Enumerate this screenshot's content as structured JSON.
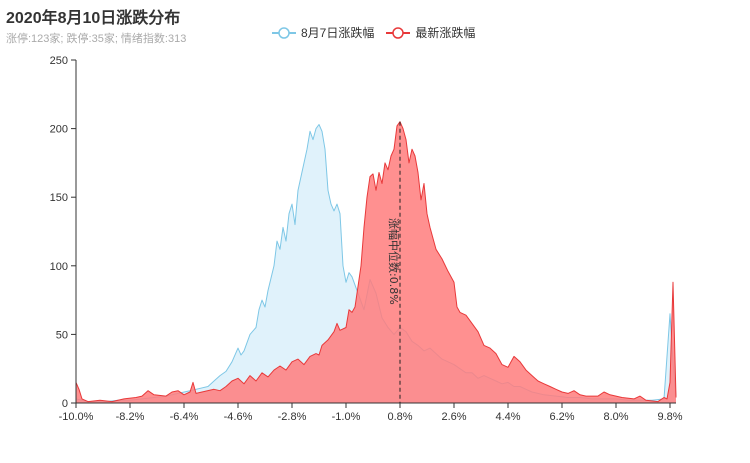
{
  "header": {
    "title": "2020年8月10日涨跌分布",
    "subtitle": "涨停:123家; 跌停:35家; 情绪指数:313"
  },
  "legend": {
    "items": [
      {
        "label": "8月7日涨跌幅",
        "color": "#7ec7e6",
        "fill": "#ddf1fb"
      },
      {
        "label": "最新涨跌幅",
        "color": "#e8393a",
        "fill": "#ff7c7c"
      }
    ]
  },
  "chart_data": {
    "type": "area",
    "title": "2020年8月10日涨跌分布",
    "subtitle": "涨停:123家; 跌停:35家; 情绪指数:313",
    "xlim": [
      -10.0,
      10.0
    ],
    "ylim": [
      0,
      250
    ],
    "x_ticks": [
      "-10.0%",
      "-8.2%",
      "-6.4%",
      "-4.6%",
      "-2.8%",
      "-1.0%",
      "0.8%",
      "2.6%",
      "4.4%",
      "6.2%",
      "8.0%",
      "9.8%"
    ],
    "x_tick_values": [
      -10.0,
      -8.2,
      -6.4,
      -4.6,
      -2.8,
      -1.0,
      0.8,
      2.6,
      4.4,
      6.2,
      8.0,
      9.8
    ],
    "y_ticks": [
      0,
      50,
      100,
      150,
      200,
      250
    ],
    "legend_position": "top-center",
    "grid": false,
    "median": {
      "x": 0.8,
      "label": "涨幅中位数:0.8%"
    },
    "series": [
      {
        "name": "8月7日涨跌幅",
        "color": "#7ec7e6",
        "fill": "#ddf1fb",
        "points": [
          [
            -10.0,
            3
          ],
          [
            -9.6,
            1
          ],
          [
            -9.0,
            1
          ],
          [
            -8.6,
            2
          ],
          [
            -8.2,
            2
          ],
          [
            -7.8,
            3
          ],
          [
            -7.4,
            4
          ],
          [
            -7.0,
            5
          ],
          [
            -6.6,
            7
          ],
          [
            -6.2,
            9
          ],
          [
            -6.0,
            10
          ],
          [
            -5.6,
            12
          ],
          [
            -5.4,
            16
          ],
          [
            -5.2,
            20
          ],
          [
            -5.0,
            23
          ],
          [
            -4.8,
            30
          ],
          [
            -4.6,
            40
          ],
          [
            -4.5,
            35
          ],
          [
            -4.4,
            38
          ],
          [
            -4.2,
            50
          ],
          [
            -4.0,
            55
          ],
          [
            -3.9,
            68
          ],
          [
            -3.8,
            75
          ],
          [
            -3.7,
            70
          ],
          [
            -3.6,
            82
          ],
          [
            -3.4,
            100
          ],
          [
            -3.3,
            118
          ],
          [
            -3.2,
            112
          ],
          [
            -3.1,
            128
          ],
          [
            -3.0,
            118
          ],
          [
            -2.9,
            138
          ],
          [
            -2.8,
            145
          ],
          [
            -2.7,
            130
          ],
          [
            -2.6,
            155
          ],
          [
            -2.5,
            165
          ],
          [
            -2.4,
            175
          ],
          [
            -2.3,
            185
          ],
          [
            -2.2,
            198
          ],
          [
            -2.1,
            192
          ],
          [
            -2.0,
            200
          ],
          [
            -1.9,
            203
          ],
          [
            -1.8,
            198
          ],
          [
            -1.7,
            185
          ],
          [
            -1.6,
            155
          ],
          [
            -1.5,
            145
          ],
          [
            -1.4,
            140
          ],
          [
            -1.3,
            145
          ],
          [
            -1.2,
            138
          ],
          [
            -1.1,
            100
          ],
          [
            -1.0,
            88
          ],
          [
            -0.9,
            95
          ],
          [
            -0.8,
            92
          ],
          [
            -0.6,
            80
          ],
          [
            -0.4,
            68
          ],
          [
            -0.2,
            90
          ],
          [
            0.0,
            80
          ],
          [
            0.2,
            62
          ],
          [
            0.4,
            55
          ],
          [
            0.6,
            50
          ],
          [
            0.8,
            55
          ],
          [
            1.0,
            52
          ],
          [
            1.2,
            45
          ],
          [
            1.4,
            42
          ],
          [
            1.6,
            38
          ],
          [
            1.8,
            40
          ],
          [
            2.0,
            36
          ],
          [
            2.2,
            32
          ],
          [
            2.4,
            30
          ],
          [
            2.6,
            28
          ],
          [
            2.8,
            25
          ],
          [
            3.0,
            22
          ],
          [
            3.2,
            22
          ],
          [
            3.4,
            18
          ],
          [
            3.6,
            20
          ],
          [
            3.8,
            18
          ],
          [
            4.0,
            16
          ],
          [
            4.2,
            14
          ],
          [
            4.4,
            15
          ],
          [
            4.6,
            12
          ],
          [
            4.8,
            12
          ],
          [
            5.0,
            10
          ],
          [
            5.2,
            8
          ],
          [
            5.6,
            6
          ],
          [
            6.0,
            5
          ],
          [
            6.4,
            4
          ],
          [
            6.8,
            4
          ],
          [
            7.2,
            3
          ],
          [
            7.6,
            3
          ],
          [
            8.0,
            3
          ],
          [
            8.4,
            2
          ],
          [
            8.8,
            2
          ],
          [
            9.2,
            2
          ],
          [
            9.6,
            3
          ],
          [
            9.8,
            65
          ],
          [
            9.9,
            30
          ],
          [
            10.0,
            5
          ]
        ]
      },
      {
        "name": "最新涨跌幅",
        "color": "#e8393a",
        "fill": "#ff7c7c",
        "points": [
          [
            -10.0,
            15
          ],
          [
            -9.9,
            10
          ],
          [
            -9.8,
            3
          ],
          [
            -9.6,
            1
          ],
          [
            -9.2,
            2
          ],
          [
            -8.8,
            1
          ],
          [
            -8.4,
            3
          ],
          [
            -8.0,
            4
          ],
          [
            -7.8,
            5
          ],
          [
            -7.6,
            9
          ],
          [
            -7.4,
            6
          ],
          [
            -7.0,
            5
          ],
          [
            -6.8,
            8
          ],
          [
            -6.6,
            9
          ],
          [
            -6.4,
            6
          ],
          [
            -6.2,
            8
          ],
          [
            -6.1,
            15
          ],
          [
            -6.0,
            7
          ],
          [
            -5.8,
            8
          ],
          [
            -5.4,
            10
          ],
          [
            -5.2,
            9
          ],
          [
            -5.0,
            12
          ],
          [
            -4.8,
            16
          ],
          [
            -4.6,
            18
          ],
          [
            -4.4,
            14
          ],
          [
            -4.2,
            20
          ],
          [
            -4.0,
            16
          ],
          [
            -3.8,
            22
          ],
          [
            -3.6,
            19
          ],
          [
            -3.4,
            24
          ],
          [
            -3.2,
            27
          ],
          [
            -3.0,
            24
          ],
          [
            -2.8,
            30
          ],
          [
            -2.6,
            32
          ],
          [
            -2.4,
            28
          ],
          [
            -2.2,
            34
          ],
          [
            -2.0,
            36
          ],
          [
            -1.9,
            35
          ],
          [
            -1.8,
            42
          ],
          [
            -1.6,
            46
          ],
          [
            -1.4,
            52
          ],
          [
            -1.3,
            58
          ],
          [
            -1.2,
            53
          ],
          [
            -1.0,
            55
          ],
          [
            -0.9,
            68
          ],
          [
            -0.8,
            66
          ],
          [
            -0.7,
            70
          ],
          [
            -0.6,
            85
          ],
          [
            -0.5,
            100
          ],
          [
            -0.4,
            128
          ],
          [
            -0.3,
            150
          ],
          [
            -0.2,
            165
          ],
          [
            -0.1,
            167
          ],
          [
            0.0,
            155
          ],
          [
            0.1,
            168
          ],
          [
            0.2,
            160
          ],
          [
            0.3,
            175
          ],
          [
            0.4,
            170
          ],
          [
            0.5,
            180
          ],
          [
            0.6,
            185
          ],
          [
            0.7,
            202
          ],
          [
            0.8,
            205
          ],
          [
            0.9,
            200
          ],
          [
            1.0,
            192
          ],
          [
            1.1,
            175
          ],
          [
            1.2,
            185
          ],
          [
            1.3,
            180
          ],
          [
            1.4,
            168
          ],
          [
            1.5,
            148
          ],
          [
            1.6,
            160
          ],
          [
            1.7,
            138
          ],
          [
            1.8,
            128
          ],
          [
            1.9,
            120
          ],
          [
            2.0,
            112
          ],
          [
            2.2,
            105
          ],
          [
            2.4,
            96
          ],
          [
            2.6,
            88
          ],
          [
            2.7,
            70
          ],
          [
            2.8,
            66
          ],
          [
            3.0,
            64
          ],
          [
            3.2,
            58
          ],
          [
            3.4,
            52
          ],
          [
            3.6,
            42
          ],
          [
            3.8,
            40
          ],
          [
            4.0,
            36
          ],
          [
            4.2,
            28
          ],
          [
            4.4,
            26
          ],
          [
            4.6,
            34
          ],
          [
            4.8,
            30
          ],
          [
            5.0,
            24
          ],
          [
            5.2,
            20
          ],
          [
            5.4,
            16
          ],
          [
            5.6,
            14
          ],
          [
            5.8,
            12
          ],
          [
            6.0,
            10
          ],
          [
            6.2,
            8
          ],
          [
            6.4,
            7
          ],
          [
            6.6,
            9
          ],
          [
            6.8,
            6
          ],
          [
            7.0,
            5
          ],
          [
            7.4,
            5
          ],
          [
            7.6,
            8
          ],
          [
            7.8,
            6
          ],
          [
            8.2,
            4
          ],
          [
            8.6,
            3
          ],
          [
            8.8,
            5
          ],
          [
            9.0,
            2
          ],
          [
            9.4,
            1
          ],
          [
            9.6,
            4
          ],
          [
            9.7,
            3
          ],
          [
            9.8,
            15
          ],
          [
            9.9,
            88
          ],
          [
            10.0,
            4
          ]
        ]
      }
    ]
  }
}
